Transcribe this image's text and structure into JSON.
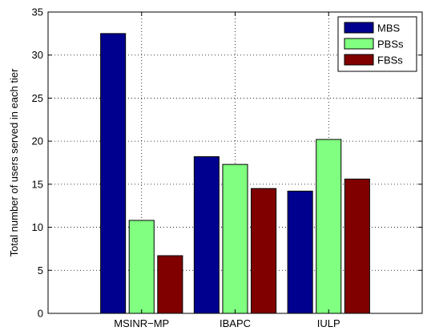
{
  "chart_data": {
    "type": "bar",
    "title": "",
    "xlabel": "",
    "ylabel": "Total number of users served in each tier",
    "categories": [
      "MSINR−MP",
      "IBAPC",
      "IULP"
    ],
    "series": [
      {
        "name": "MBS",
        "values": [
          32.5,
          18.2,
          14.2
        ],
        "color": "#00008F"
      },
      {
        "name": "PBSs",
        "values": [
          10.8,
          17.3,
          20.2
        ],
        "color": "#80FF80"
      },
      {
        "name": "FBSs",
        "values": [
          6.7,
          14.5,
          15.6
        ],
        "color": "#800000"
      }
    ],
    "ylim": [
      0,
      35
    ],
    "yticks": [
      0,
      5,
      10,
      15,
      20,
      25,
      30,
      35
    ],
    "grid": true,
    "legend_position": "top-right"
  }
}
